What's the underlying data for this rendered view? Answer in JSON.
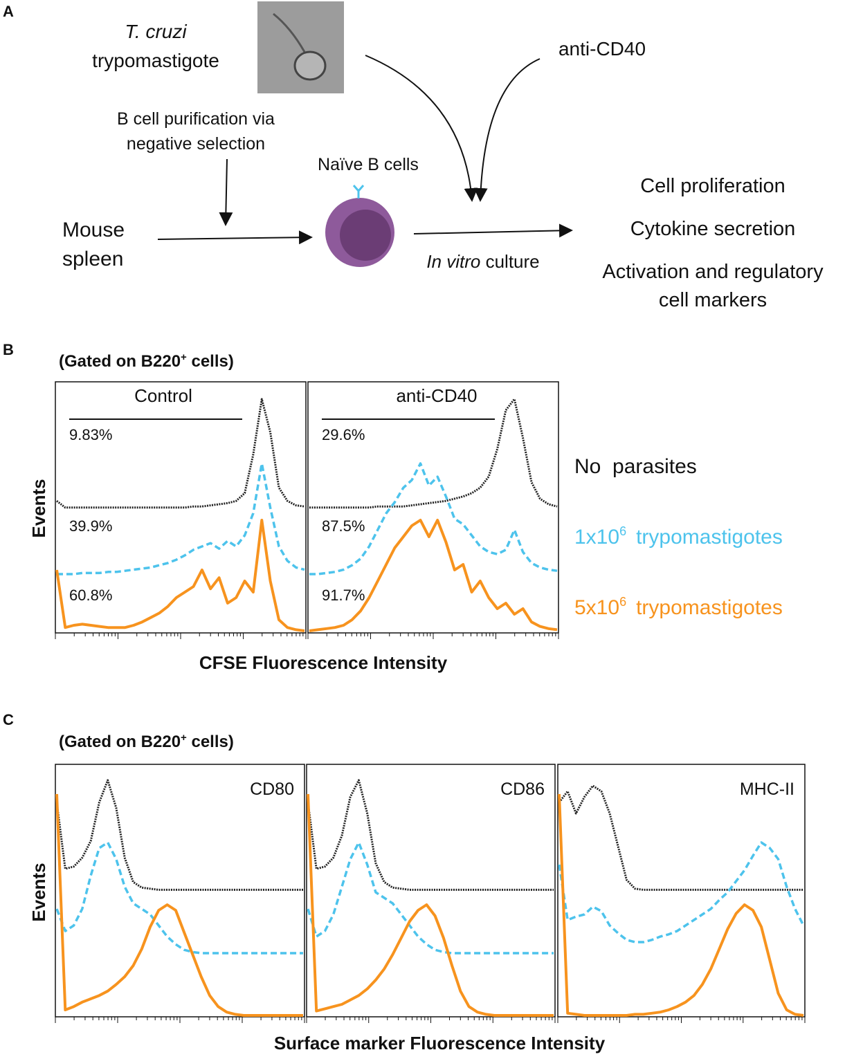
{
  "panel_a": {
    "letter": "A",
    "organism": {
      "species": "T. cruzi",
      "stage": "trypomastigote"
    },
    "purification": [
      "B cell purification via",
      "negative selection"
    ],
    "cells": "Naïve B cells",
    "source": [
      "Mouse",
      "spleen"
    ],
    "stimulus": "anti-CD40",
    "culture": {
      "italic": "In vitro",
      "rest": " culture"
    },
    "readouts": [
      "Cell proliferation",
      "Cytokine secretion",
      "Activation and regulatory",
      "cell markers"
    ]
  },
  "panel_b": {
    "letter": "B",
    "gate": {
      "before": "(Gated on B220",
      "sup": "+",
      "after": " cells)"
    },
    "y_label": "Events",
    "x_label": "CFSE Fluorescence Intensity",
    "legend": [
      {
        "text": "No  parasites",
        "color": "#111111"
      },
      {
        "base": "1x10",
        "sup": "6",
        "rest": "trypomastigotes",
        "color": "#4dc3ec"
      },
      {
        "base": "5x10",
        "sup": "6",
        "rest": "trypomastigotes",
        "color": "#f7931e"
      }
    ],
    "charts": [
      {
        "title": "Control",
        "gates": [
          "9.83%",
          "39.9%",
          "60.8%"
        ],
        "series": [
          {
            "color": "#222222",
            "style": "dotted",
            "values": [
              8,
              2,
              2,
              2,
              2,
              2,
              2,
              2,
              2,
              2,
              2,
              2,
              2,
              2,
              2,
              2,
              3,
              3,
              4,
              5,
              6,
              8,
              15,
              50,
              100,
              70,
              20,
              8,
              4,
              3
            ]
          },
          {
            "color": "#4dc3ec",
            "style": "dashed",
            "values": [
              0,
              0,
              0,
              1,
              1,
              1,
              2,
              2,
              3,
              4,
              5,
              6,
              8,
              10,
              13,
              17,
              22,
              25,
              28,
              23,
              30,
              25,
              35,
              55,
              100,
              60,
              25,
              12,
              6,
              4
            ]
          },
          {
            "color": "#f7931e",
            "style": "solid",
            "values": [
              55,
              3,
              5,
              6,
              5,
              4,
              3,
              3,
              3,
              5,
              8,
              12,
              16,
              22,
              30,
              35,
              40,
              55,
              38,
              48,
              25,
              30,
              45,
              35,
              100,
              45,
              10,
              3,
              1,
              0
            ]
          }
        ]
      },
      {
        "title": "anti-CD40",
        "gates": [
          "29.6%",
          "87.5%",
          "91.7%"
        ],
        "series": [
          {
            "color": "#222222",
            "style": "dotted",
            "values": [
              2,
              2,
              2,
              2,
              2,
              2,
              2,
              2,
              3,
              3,
              3,
              3,
              4,
              5,
              6,
              7,
              8,
              10,
              12,
              15,
              20,
              30,
              55,
              90,
              100,
              65,
              25,
              10,
              5,
              3
            ]
          },
          {
            "color": "#4dc3ec",
            "style": "dashed",
            "values": [
              0,
              0,
              1,
              2,
              4,
              8,
              14,
              25,
              40,
              55,
              65,
              78,
              85,
              100,
              80,
              88,
              70,
              50,
              45,
              35,
              25,
              20,
              18,
              22,
              40,
              20,
              10,
              6,
              4,
              3
            ]
          },
          {
            "color": "#f7931e",
            "style": "solid",
            "values": [
              0,
              1,
              2,
              3,
              5,
              10,
              18,
              30,
              45,
              60,
              75,
              85,
              95,
              100,
              85,
              100,
              80,
              55,
              60,
              35,
              45,
              30,
              20,
              25,
              15,
              20,
              8,
              4,
              2,
              1
            ]
          }
        ]
      }
    ]
  },
  "panel_c": {
    "letter": "C",
    "gate": {
      "before": "(Gated on B220",
      "sup": "+",
      "after": " cells)"
    },
    "y_label": "Events",
    "x_label": "Surface marker Fluorescence Intensity",
    "charts": [
      {
        "title": "CD80",
        "series": [
          {
            "color": "#222222",
            "style": "dotted",
            "values": [
              80,
              20,
              22,
              30,
              45,
              80,
              100,
              75,
              30,
              8,
              3,
              2,
              1,
              1,
              1,
              1,
              1,
              1,
              1,
              1,
              1,
              1,
              1,
              1,
              1,
              1,
              1,
              1,
              1,
              1
            ]
          },
          {
            "color": "#4dc3ec",
            "style": "dashed",
            "values": [
              40,
              20,
              25,
              40,
              70,
              95,
              100,
              85,
              60,
              45,
              40,
              35,
              25,
              15,
              8,
              3,
              1,
              0,
              0,
              0,
              0,
              0,
              0,
              0,
              0,
              0,
              0,
              0,
              0,
              0
            ]
          },
          {
            "color": "#f7931e",
            "style": "solid",
            "values": [
              200,
              5,
              8,
              12,
              15,
              18,
              22,
              28,
              35,
              45,
              60,
              80,
              95,
              100,
              95,
              75,
              55,
              35,
              18,
              8,
              3,
              1,
              0,
              0,
              0,
              0,
              0,
              0,
              0,
              0
            ]
          }
        ]
      },
      {
        "title": "CD86",
        "series": [
          {
            "color": "#222222",
            "style": "dotted",
            "values": [
              80,
              20,
              22,
              30,
              50,
              85,
              100,
              70,
              25,
              8,
              3,
              2,
              1,
              1,
              1,
              1,
              1,
              1,
              1,
              1,
              1,
              1,
              1,
              1,
              1,
              1,
              1,
              1,
              1,
              1
            ]
          },
          {
            "color": "#4dc3ec",
            "style": "dashed",
            "values": [
              40,
              15,
              20,
              35,
              60,
              85,
              100,
              80,
              55,
              50,
              45,
              35,
              25,
              15,
              8,
              3,
              1,
              0,
              0,
              0,
              0,
              0,
              0,
              0,
              0,
              0,
              0,
              0,
              0,
              0
            ]
          },
          {
            "color": "#f7931e",
            "style": "solid",
            "values": [
              200,
              4,
              6,
              8,
              10,
              14,
              18,
              24,
              32,
              42,
              55,
              70,
              85,
              95,
              100,
              90,
              70,
              45,
              22,
              8,
              3,
              1,
              0,
              0,
              0,
              0,
              0,
              0,
              0,
              0
            ]
          }
        ]
      },
      {
        "title": "MHC-II",
        "series": [
          {
            "color": "#222222",
            "style": "dotted",
            "values": [
              80,
              90,
              70,
              85,
              95,
              90,
              70,
              40,
              10,
              2,
              1,
              1,
              1,
              1,
              1,
              1,
              1,
              1,
              1,
              1,
              1,
              1,
              1,
              1,
              1,
              1,
              1,
              1,
              1,
              1
            ]
          },
          {
            "color": "#4dc3ec",
            "style": "dashed",
            "values": [
              80,
              30,
              33,
              35,
              42,
              38,
              25,
              18,
              12,
              10,
              10,
              12,
              15,
              17,
              20,
              25,
              30,
              35,
              40,
              48,
              55,
              65,
              75,
              88,
              100,
              95,
              85,
              60,
              40,
              25
            ]
          },
          {
            "color": "#f7931e",
            "style": "solid",
            "values": [
              200,
              2,
              1,
              0,
              0,
              0,
              0,
              0,
              0,
              1,
              1,
              2,
              3,
              5,
              8,
              12,
              18,
              28,
              42,
              60,
              78,
              92,
              100,
              95,
              80,
              50,
              20,
              5,
              1,
              0
            ]
          }
        ]
      }
    ]
  }
}
